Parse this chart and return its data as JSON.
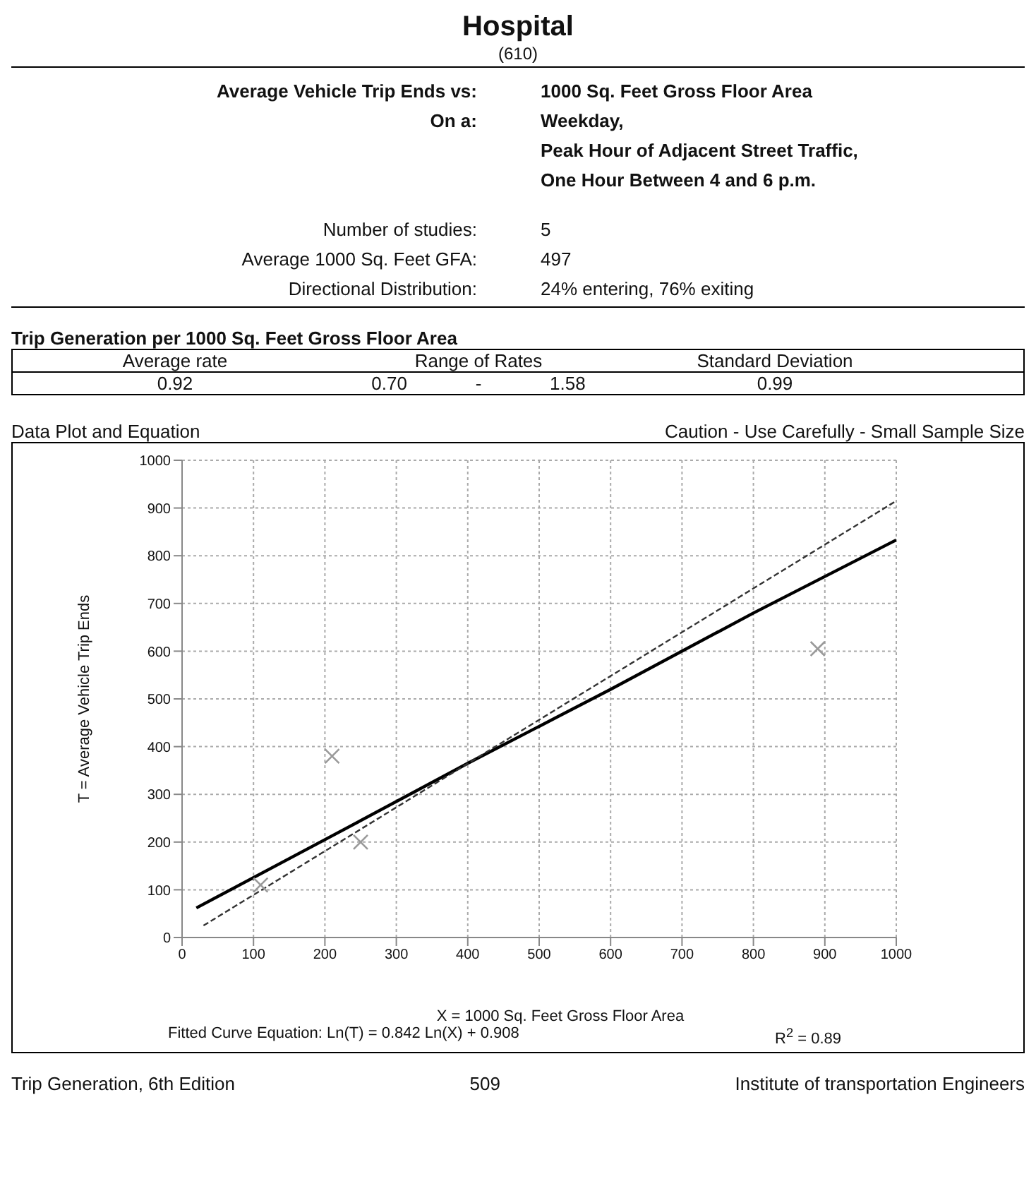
{
  "chart_data": {
    "type": "scatter",
    "title": "Hospital",
    "subtitle": "(610)",
    "xlabel": "X = 1000 Sq. Feet Gross Floor Area",
    "ylabel": "T = Average Vehicle Trip Ends",
    "annotations": [
      "Average Vehicle Trip Ends vs:",
      "1000 Sq. Feet Gross Floor Area",
      "On a:",
      "Weekday,",
      "Peak Hour of Adjacent Street Traffic,",
      "One Hour Between 4 and 6 p.m.",
      "Number of studies:",
      "5",
      "Average 1000 Sq. Feet GFA:",
      "497",
      "Directional Distribution:",
      "24% entering, 76% exiting",
      "Trip Generation per 1000 Sq. Feet Gross Floor Area",
      "Average rate",
      "Range of Rates",
      "Standard Deviation",
      "0.92",
      "0.70",
      "-",
      "1.58",
      "0.99",
      "Data Plot and Equation",
      "Caution - Use Carefully - Small Sample Size",
      "Fitted Curve Equation: Ln(T) = 0.842 Ln(X) + 0.908",
      "R$^{2}$ = 0.89",
      "Trip Generation, 6th Edition",
      "509",
      "Institute of transportation Engineers"
    ],
    "xlim": [
      0,
      1000
    ],
    "xticks": [
      0,
      100,
      200,
      300,
      400,
      500,
      600,
      700,
      800,
      900,
      1000
    ],
    "ylim": [
      0,
      1000
    ],
    "yticks": [
      0,
      100,
      200,
      300,
      400,
      500,
      600,
      700,
      800,
      900,
      1000
    ],
    "grid": true,
    "series": [
      {
        "color": "#9a9a9a",
        "marker": "cross",
        "x": [
          110,
          210,
          250,
          890
        ],
        "values": [
          110,
          380,
          200,
          605
        ]
      },
      {
        "type": "line",
        "color": "#000000",
        "marker": "none",
        "line_style": "solid",
        "x": [
          20,
          200,
          400,
          600,
          800,
          1000
        ],
        "values": [
          62,
          205,
          365,
          520,
          680,
          833
        ]
      },
      {
        "type": "line",
        "color": "#333333",
        "marker": "none",
        "line_style": "dashed",
        "x": [
          30,
          1000
        ],
        "values": [
          25,
          915
        ]
      }
    ]
  }
}
